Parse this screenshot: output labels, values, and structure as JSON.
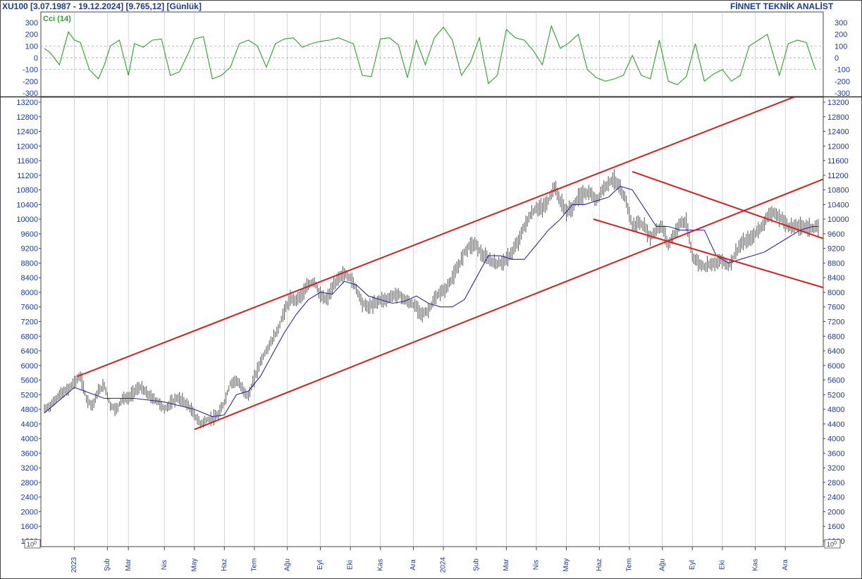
{
  "header": {
    "left_text": "XU100  [3.07.1987 - 19.12.2024]  [9.765,12]  [Günlük]",
    "right_text": "FİNNET TEKNİK ANALİST"
  },
  "colors": {
    "axis_text": "#1b3a9a",
    "cci_line": "#2ea02e",
    "price_bars": "#555555",
    "moving_average": "#2b2b9a",
    "trend_lines": "#d32020",
    "grid": "#bbbbbb"
  },
  "chart_data": [
    {
      "type": "line",
      "indicator": "CCI",
      "legend": "Cci (14)",
      "ylim": [
        -300,
        300
      ],
      "y_ticks": [
        "300",
        "200",
        "100",
        "0",
        "-100",
        "-200",
        "-300"
      ],
      "reference_lines": [
        100,
        0,
        -100
      ],
      "series": [
        {
          "name": "Cci (14)",
          "x": [
            0,
            2,
            5,
            8,
            10,
            12,
            15,
            18,
            20,
            22,
            25,
            28,
            30,
            33,
            36,
            39,
            42,
            45,
            48,
            50,
            53,
            56,
            59,
            62,
            65,
            68,
            71,
            74,
            77,
            80,
            83,
            86,
            89,
            92,
            95,
            98,
            100,
            103,
            106,
            109,
            112,
            115,
            118,
            121,
            124,
            127,
            130,
            133,
            136,
            139,
            142,
            145,
            148,
            151,
            154,
            157,
            160,
            163,
            166,
            169,
            172,
            175,
            178,
            181,
            184,
            187,
            190,
            193,
            196,
            199,
            202,
            205,
            208,
            211,
            214,
            217,
            220,
            223,
            226,
            229,
            232,
            235,
            238,
            241,
            245,
            248,
            251,
            254,
            257
          ],
          "values": [
            80,
            40,
            -60,
            220,
            150,
            130,
            -100,
            -180,
            -60,
            100,
            150,
            -150,
            120,
            90,
            150,
            160,
            -150,
            -120,
            40,
            160,
            180,
            -180,
            -150,
            -80,
            120,
            150,
            100,
            -80,
            120,
            160,
            170,
            90,
            120,
            140,
            150,
            170,
            150,
            120,
            -150,
            -160,
            160,
            170,
            110,
            -170,
            150,
            -60,
            170,
            260,
            150,
            -150,
            -40,
            170,
            -220,
            -150,
            240,
            170,
            150,
            60,
            -60,
            270,
            80,
            130,
            200,
            -100,
            -170,
            -200,
            -180,
            -150,
            20,
            -150,
            -180,
            150,
            -200,
            -230,
            -160,
            120,
            -200,
            -140,
            -100,
            -200,
            -150,
            100,
            150,
            200,
            -150,
            120,
            150,
            130,
            -100
          ]
        }
      ]
    },
    {
      "type": "bar",
      "style": "ohlc",
      "ylim": [
        1000,
        13400
      ],
      "y_ticks": [
        "13200",
        "12800",
        "12400",
        "12000",
        "11600",
        "11200",
        "10800",
        "10400",
        "10000",
        "9600",
        "9200",
        "8800",
        "8400",
        "8000",
        "7600",
        "7200",
        "6800",
        "6400",
        "6000",
        "5600",
        "5200",
        "4800",
        "4400",
        "4000",
        "3600",
        "3200",
        "2800",
        "2400",
        "2000",
        "1600",
        "1200"
      ],
      "scale_label": "10^0",
      "x_tick_labels": [
        "2023",
        "Şub",
        "Mar",
        "Nis",
        "May",
        "Haz",
        "Tem",
        "Ağu",
        "Eyl",
        "Eki",
        "Kas",
        "Ara",
        "2024",
        "Şub",
        "Mar",
        "Nis",
        "May",
        "Haz",
        "Tem",
        "Ağu",
        "Eyl",
        "Eki",
        "Kas",
        "Ara"
      ],
      "x_tick_positions": [
        10,
        21,
        28,
        40,
        50,
        60,
        70,
        81,
        92,
        102,
        112,
        123,
        133,
        144,
        154,
        164,
        174,
        185,
        195,
        206,
        216,
        226,
        237,
        247
      ],
      "price_path": {
        "x": [
          0,
          2,
          5,
          8,
          10,
          12,
          14,
          16,
          18,
          20,
          22,
          24,
          26,
          28,
          30,
          32,
          34,
          36,
          38,
          40,
          42,
          44,
          46,
          48,
          50,
          52,
          54,
          56,
          58,
          60,
          62,
          64,
          66,
          68,
          70,
          72,
          74,
          76,
          78,
          80,
          82,
          84,
          86,
          88,
          90,
          92,
          94,
          96,
          98,
          100,
          102,
          104,
          106,
          108,
          110,
          112,
          114,
          116,
          118,
          120,
          122,
          124,
          126,
          128,
          130,
          132,
          134,
          136,
          138,
          140,
          142,
          144,
          146,
          148,
          150,
          152,
          154,
          156,
          158,
          160,
          162,
          164,
          166,
          168,
          170,
          172,
          174,
          176,
          178,
          180,
          182,
          184,
          186,
          188,
          190,
          192,
          194,
          196,
          198,
          200,
          202,
          204,
          206,
          208,
          210,
          212,
          214,
          216,
          218,
          220,
          222,
          224,
          226,
          228,
          230,
          232,
          234,
          236,
          238,
          240,
          242,
          244,
          246,
          248,
          250,
          252,
          254,
          256,
          258
        ],
        "values": [
          4800,
          4900,
          5200,
          5350,
          5550,
          5700,
          5100,
          4900,
          5300,
          5450,
          4900,
          4800,
          5100,
          5100,
          5300,
          5400,
          5250,
          5100,
          5000,
          4800,
          4950,
          5100,
          5050,
          4900,
          4650,
          4400,
          4500,
          4550,
          4650,
          5000,
          5500,
          5600,
          5350,
          5150,
          5650,
          6100,
          6400,
          6700,
          7000,
          7500,
          7800,
          7800,
          7950,
          8200,
          8300,
          7900,
          7800,
          8100,
          8400,
          8500,
          8400,
          8100,
          7700,
          7600,
          7700,
          7800,
          7800,
          7900,
          7950,
          7800,
          7700,
          7600,
          7400,
          7500,
          7800,
          8000,
          8100,
          8400,
          8700,
          9100,
          9300,
          9300,
          9000,
          8900,
          8800,
          8800,
          8900,
          9100,
          9400,
          9800,
          10100,
          10300,
          10300,
          10500,
          10900,
          10500,
          10200,
          10300,
          10600,
          10700,
          10700,
          10500,
          10800,
          11000,
          11100,
          10800,
          10500,
          9800,
          9900,
          9800,
          9500,
          9700,
          9800,
          9300,
          9600,
          9900,
          9900,
          9000,
          8800,
          8700,
          8800,
          8800,
          8900,
          8700,
          9000,
          9300,
          9400,
          9500,
          9700,
          9900,
          10200,
          10100,
          10000,
          9800,
          9800,
          9800,
          9800,
          9750,
          9765
        ]
      },
      "moving_average": {
        "x": [
          0,
          10,
          20,
          30,
          40,
          50,
          56,
          60,
          64,
          68,
          72,
          76,
          80,
          84,
          88,
          92,
          96,
          100,
          104,
          108,
          112,
          116,
          120,
          124,
          128,
          132,
          136,
          140,
          144,
          148,
          152,
          156,
          160,
          164,
          168,
          172,
          176,
          180,
          184,
          188,
          192,
          196,
          200,
          204,
          208,
          212,
          216,
          220,
          224,
          228,
          232,
          236,
          240,
          244,
          248,
          252,
          256,
          258
        ],
        "values": [
          4700,
          5400,
          5100,
          5100,
          5000,
          4800,
          4600,
          4650,
          5200,
          5300,
          5700,
          6300,
          6900,
          7400,
          7800,
          8000,
          7950,
          8300,
          8200,
          7900,
          7800,
          7700,
          7750,
          7900,
          7700,
          7600,
          7600,
          7800,
          8400,
          9000,
          9000,
          8900,
          8900,
          9300,
          9700,
          10000,
          10400,
          10400,
          10500,
          10600,
          10900,
          10800,
          10300,
          9800,
          9800,
          9700,
          9700,
          9700,
          9000,
          8800,
          8900,
          9000,
          9100,
          9300,
          9500,
          9700,
          9800,
          9800
        ]
      },
      "trend_lines": [
        {
          "x": [
            11,
            258
          ],
          "values": [
            5700,
            13600
          ]
        },
        {
          "x": [
            50,
            269
          ],
          "values": [
            4250,
            11400
          ]
        },
        {
          "x": [
            196,
            269
          ],
          "values": [
            11300,
            9200
          ]
        },
        {
          "x": [
            183,
            269
          ],
          "values": [
            10000,
            7900
          ]
        }
      ]
    }
  ]
}
